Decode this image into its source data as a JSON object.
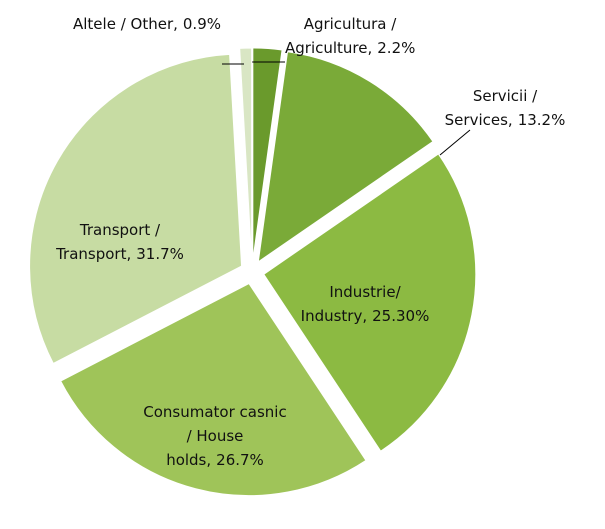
{
  "chart_data": {
    "type": "pie",
    "categories": [
      "Agricultura / Agriculture,",
      "Servicii / Services,",
      "Industrie/ Industry,",
      "Consumator casnic / House holds,",
      "Transport / Transport,",
      "Altele / Other,"
    ],
    "values": [
      2.2,
      13.2,
      25.3,
      26.7,
      31.7,
      0.9
    ],
    "value_labels": [
      "2.2%",
      "13.2%",
      "25.30%",
      "26.7%",
      "31.7%",
      "0.9%"
    ],
    "colors": [
      "#6a9a2c",
      "#7aaa38",
      "#8cba42",
      "#9fc459",
      "#c7dca3",
      "#d9e6c4"
    ]
  }
}
